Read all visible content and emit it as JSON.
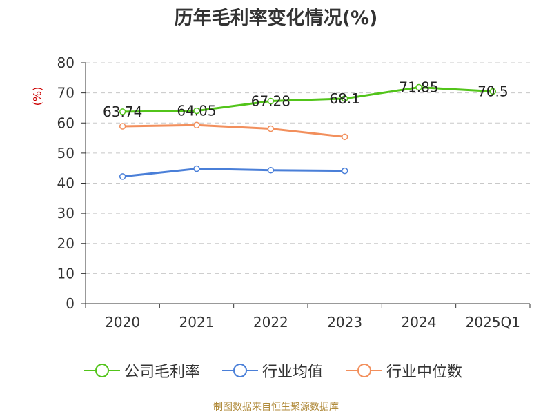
{
  "chart_data": {
    "type": "line",
    "title": "历年毛利率变化情况(%)",
    "ylabel": "(%)",
    "categories": [
      "2020",
      "2021",
      "2022",
      "2023",
      "2024",
      "2025Q1"
    ],
    "ylim": [
      0,
      80
    ],
    "yticks": [
      0,
      10,
      20,
      30,
      40,
      50,
      60,
      70,
      80
    ],
    "grid": true,
    "legend_position": "bottom",
    "series": [
      {
        "name": "公司毛利率",
        "color": "#52c41a",
        "values": [
          63.74,
          64.05,
          67.28,
          68.1,
          71.85,
          70.5
        ],
        "labels": [
          "63.74",
          "64.05",
          "67.28",
          "68.1",
          "71.85",
          "70.5"
        ]
      },
      {
        "name": "行业均值",
        "color": "#4a7fd8",
        "values": [
          42.2,
          44.8,
          44.3,
          44.1,
          null,
          null
        ]
      },
      {
        "name": "行业中位数",
        "color": "#f28f5c",
        "values": [
          58.9,
          59.3,
          58.1,
          55.4,
          null,
          null
        ]
      }
    ]
  },
  "footer": "制图数据来自恒生聚源数据库"
}
